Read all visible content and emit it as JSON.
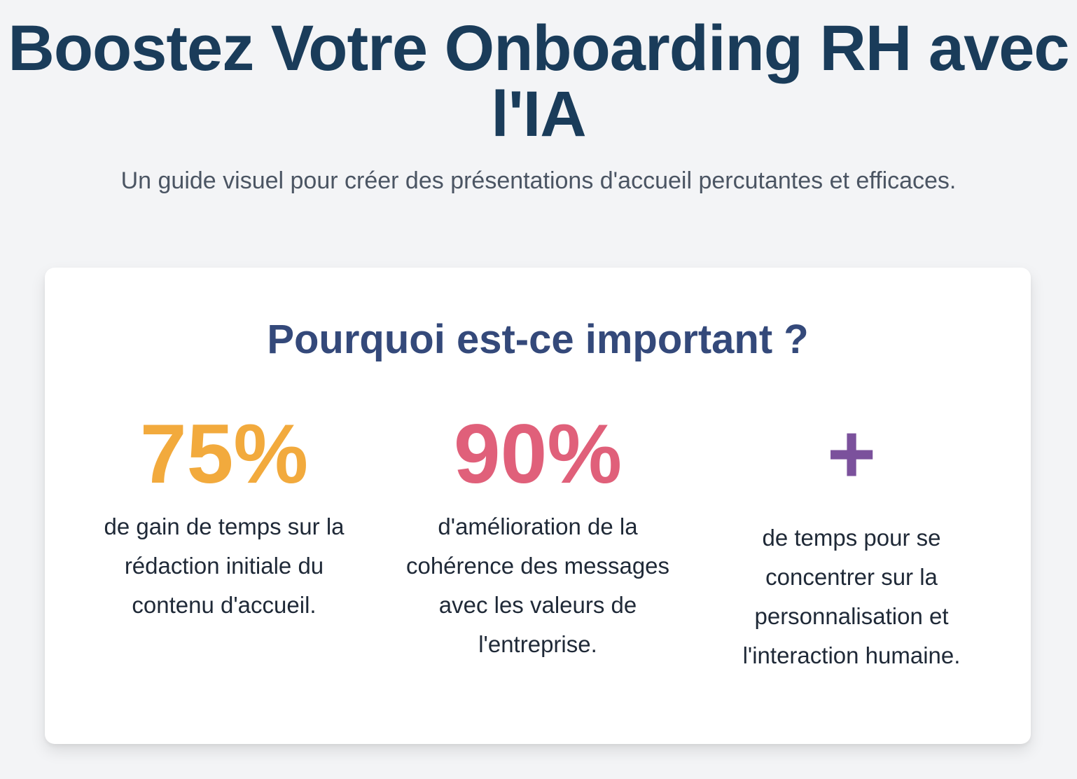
{
  "header": {
    "title": "Boostez Votre Onboarding RH avec l'IA",
    "subtitle": "Un guide visuel pour créer des présentations d'accueil percutantes et efficaces."
  },
  "card": {
    "title": "Pourquoi est-ce important ?",
    "stats": [
      {
        "value": "75%",
        "description": "de gain de temps sur la rédaction initiale du contenu d'accueil.",
        "color": "#f2aa3d"
      },
      {
        "value": "90%",
        "description": "d'amélioration de la cohérence des messages avec les valeurs de l'entreprise.",
        "color": "#e0607a"
      },
      {
        "value": "+",
        "description": "de temps pour se concentrer sur la personnalisation et l'interaction humaine.",
        "color": "#7b519c"
      }
    ]
  }
}
